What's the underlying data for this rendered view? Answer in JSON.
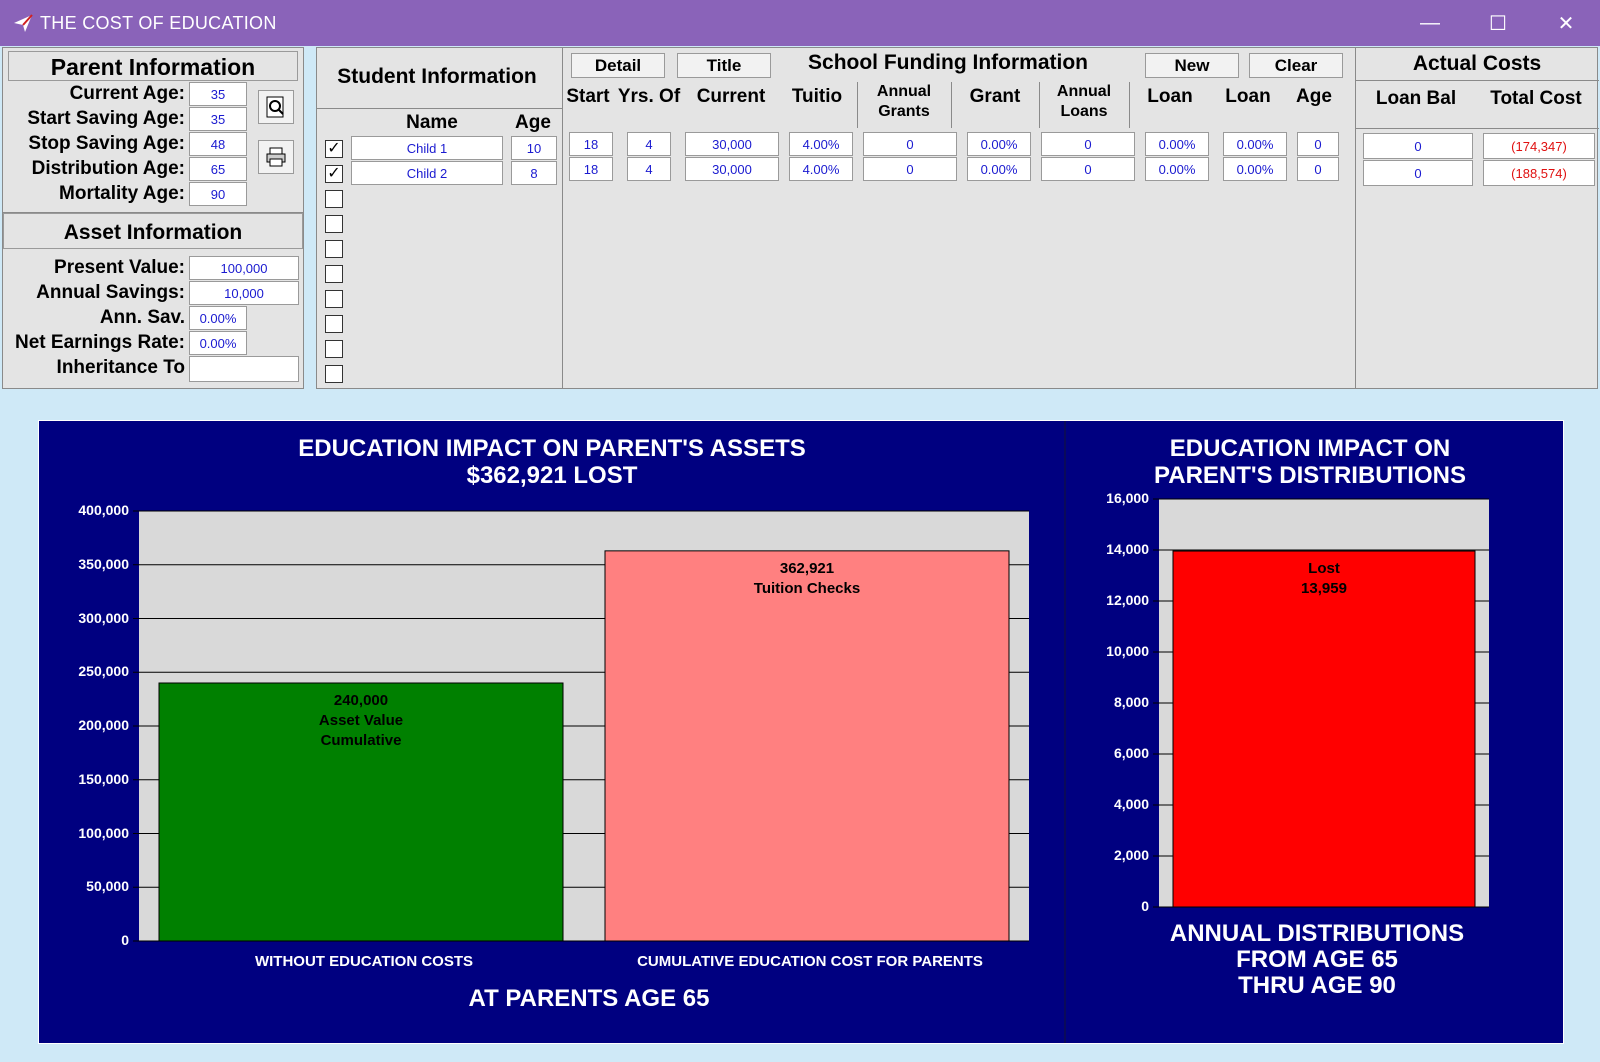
{
  "window": {
    "title": "THE COST OF EDUCATION",
    "minimize": "—",
    "maximize": "☐",
    "close": "✕"
  },
  "parent": {
    "title": "Parent Information",
    "fields": [
      {
        "label": "Current Age:",
        "value": "35"
      },
      {
        "label": "Start Saving Age:",
        "value": "35"
      },
      {
        "label": "Stop Saving Age:",
        "value": "48"
      },
      {
        "label": "Distribution Age:",
        "value": "65"
      },
      {
        "label": "Mortality Age:",
        "value": "90"
      }
    ]
  },
  "asset": {
    "title": "Asset Information",
    "fields": [
      {
        "label": "Present Value:",
        "value": "100,000"
      },
      {
        "label": "Annual Savings:",
        "value": "10,000"
      },
      {
        "label": "Ann. Sav.",
        "value": "0.00%"
      },
      {
        "label": "Net Earnings Rate:",
        "value": "0.00%"
      },
      {
        "label": "Inheritance To",
        "value": ""
      }
    ]
  },
  "student": {
    "title": "Student Information",
    "col_name": "Name",
    "col_age": "Age",
    "rows": [
      {
        "checked": "✓",
        "name": "Child 1",
        "age": "10"
      },
      {
        "checked": "✓",
        "name": "Child 2",
        "age": "8"
      }
    ]
  },
  "funding": {
    "title": "School Funding Information",
    "buttons": {
      "detail": "Detail",
      "title": "Title",
      "new": "New",
      "clear": "Clear"
    },
    "headers": [
      "Start",
      "Yrs. Of",
      "Current",
      "Tuitio",
      "Annual Grants",
      "Grant",
      "Annual Loans",
      "Loan",
      "Loan",
      "Age"
    ],
    "rows": [
      [
        "18",
        "4",
        "30,000",
        "4.00%",
        "0",
        "0.00%",
        "0",
        "0.00%",
        "0.00%",
        "0"
      ],
      [
        "18",
        "4",
        "30,000",
        "4.00%",
        "0",
        "0.00%",
        "0",
        "0.00%",
        "0.00%",
        "0"
      ]
    ]
  },
  "actual": {
    "title": "Actual Costs",
    "col_loan": "Loan Bal",
    "col_total": "Total Cost",
    "rows": [
      {
        "loan": "0",
        "total": "(174,347)"
      },
      {
        "loan": "0",
        "total": "(188,574)"
      }
    ]
  },
  "colors": {
    "titlebar": "#8a63b9",
    "chart_bg": "#000080",
    "plot_bg": "#d9d9d9",
    "green_bar": "#008000",
    "pink_bar": "#ff8080",
    "red_bar": "#ff0000"
  },
  "chart_data": [
    {
      "type": "bar",
      "title": "EDUCATION IMPACT ON PARENT'S ASSETS",
      "subtitle": "$362,921 LOST",
      "xlabel": "AT PARENTS AGE 65",
      "ylim": [
        0,
        400000
      ],
      "yticks": [
        "0",
        "50,000",
        "100,000",
        "150,000",
        "200,000",
        "250,000",
        "300,000",
        "350,000",
        "400,000"
      ],
      "categories": [
        "WITHOUT EDUCATION COSTS",
        "CUMULATIVE EDUCATION COST FOR PARENTS"
      ],
      "values": [
        240000,
        362921
      ],
      "bar_labels": [
        [
          "240,000",
          "Asset Value",
          "Cumulative"
        ],
        [
          "362,921",
          "Tuition Checks"
        ]
      ],
      "grid": true
    },
    {
      "type": "bar",
      "title": "EDUCATION IMPACT ON",
      "subtitle": "PARENT'S DISTRIBUTIONS",
      "footer": [
        "ANNUAL DISTRIBUTIONS",
        "FROM AGE 65",
        "THRU AGE 90"
      ],
      "ylim": [
        0,
        16000
      ],
      "yticks": [
        "0",
        "2,000",
        "4,000",
        "6,000",
        "8,000",
        "10,000",
        "12,000",
        "14,000",
        "16,000"
      ],
      "values": [
        13959
      ],
      "bar_labels": [
        [
          "Lost",
          "13,959"
        ]
      ],
      "grid": true
    }
  ]
}
